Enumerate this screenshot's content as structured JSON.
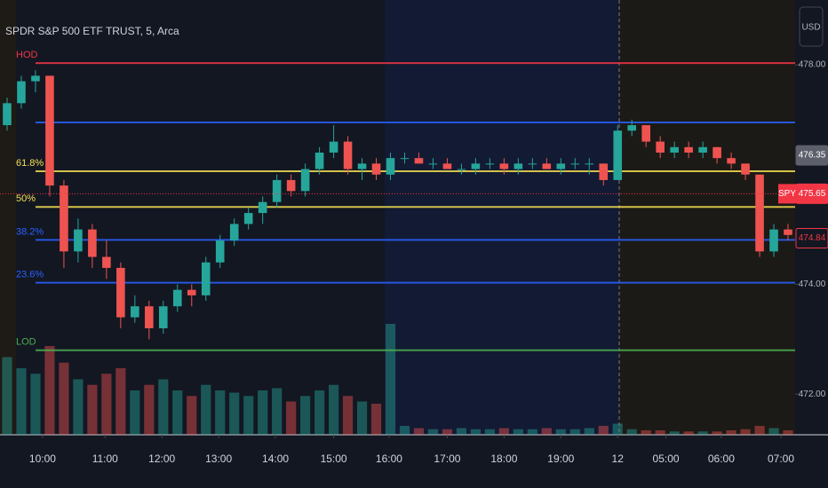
{
  "chart_data": {
    "type": "candlestick",
    "title": "SPDR S&P 500 ETF TRUST, 5, Arca",
    "currency": "USD",
    "up_color": "#26a69a",
    "down_color": "#ef5350",
    "ohlc": [
      [
        476.9,
        477.4,
        476.8,
        477.3
      ],
      [
        477.3,
        477.8,
        477.2,
        477.7
      ],
      [
        477.7,
        477.9,
        477.5,
        477.8
      ],
      [
        477.8,
        477.8,
        475.6,
        475.8
      ],
      [
        475.8,
        475.9,
        474.3,
        474.6
      ],
      [
        474.6,
        475.2,
        474.4,
        475.0
      ],
      [
        475.0,
        475.1,
        474.3,
        474.5
      ],
      [
        474.5,
        474.8,
        474.1,
        474.3
      ],
      [
        474.3,
        474.4,
        473.2,
        473.4
      ],
      [
        473.4,
        473.8,
        473.3,
        473.6
      ],
      [
        473.6,
        473.7,
        473.0,
        473.2
      ],
      [
        473.2,
        473.7,
        473.1,
        473.6
      ],
      [
        473.6,
        474.0,
        473.5,
        473.9
      ],
      [
        473.9,
        474.0,
        473.6,
        473.8
      ],
      [
        473.8,
        474.5,
        473.7,
        474.4
      ],
      [
        474.4,
        474.9,
        474.3,
        474.8
      ],
      [
        474.8,
        475.2,
        474.7,
        475.1
      ],
      [
        475.1,
        475.4,
        475.0,
        475.3
      ],
      [
        475.3,
        475.6,
        475.1,
        475.5
      ],
      [
        475.5,
        476.0,
        475.4,
        475.9
      ],
      [
        475.9,
        476.0,
        475.6,
        475.7
      ],
      [
        475.7,
        476.2,
        475.6,
        476.1
      ],
      [
        476.1,
        476.5,
        476.0,
        476.4
      ],
      [
        476.4,
        476.9,
        476.3,
        476.6
      ],
      [
        476.6,
        476.7,
        476.0,
        476.1
      ],
      [
        476.1,
        476.3,
        475.9,
        476.2
      ],
      [
        476.2,
        476.3,
        475.9,
        476.0
      ],
      [
        476.0,
        476.4,
        475.9,
        476.3
      ],
      [
        476.3,
        476.4,
        476.2,
        476.3
      ],
      [
        476.3,
        476.4,
        476.2,
        476.2
      ],
      [
        476.2,
        476.3,
        476.1,
        476.2
      ],
      [
        476.2,
        476.3,
        476.1,
        476.1
      ],
      [
        476.1,
        476.2,
        476.0,
        476.1
      ],
      [
        476.1,
        476.3,
        476.0,
        476.2
      ],
      [
        476.2,
        476.3,
        476.1,
        476.2
      ],
      [
        476.2,
        476.3,
        476.0,
        476.1
      ],
      [
        476.1,
        476.3,
        476.0,
        476.2
      ],
      [
        476.2,
        476.3,
        476.1,
        476.2
      ],
      [
        476.2,
        476.3,
        476.1,
        476.1
      ],
      [
        476.1,
        476.3,
        476.0,
        476.2
      ],
      [
        476.2,
        476.3,
        476.1,
        476.2
      ],
      [
        476.2,
        476.3,
        476.0,
        476.2
      ],
      [
        476.2,
        476.2,
        475.8,
        475.9
      ],
      [
        475.9,
        476.9,
        475.9,
        476.8
      ],
      [
        476.8,
        477.0,
        476.7,
        476.9
      ],
      [
        476.9,
        476.9,
        476.5,
        476.6
      ],
      [
        476.6,
        476.7,
        476.3,
        476.4
      ],
      [
        476.4,
        476.6,
        476.3,
        476.5
      ],
      [
        476.5,
        476.6,
        476.3,
        476.4
      ],
      [
        476.4,
        476.6,
        476.3,
        476.5
      ],
      [
        476.5,
        476.5,
        476.2,
        476.3
      ],
      [
        476.3,
        476.4,
        476.1,
        476.2
      ],
      [
        476.2,
        476.2,
        475.9,
        476.0
      ],
      [
        476.0,
        476.0,
        474.5,
        474.6
      ],
      [
        474.6,
        475.1,
        474.5,
        475.0
      ],
      [
        475.0,
        475.1,
        474.8,
        474.9
      ]
    ],
    "volume": [
      70,
      60,
      55,
      80,
      65,
      50,
      45,
      55,
      60,
      40,
      45,
      50,
      40,
      35,
      45,
      40,
      38,
      35,
      40,
      42,
      30,
      35,
      40,
      45,
      35,
      30,
      28,
      100,
      8,
      6,
      5,
      5,
      6,
      5,
      5,
      6,
      5,
      5,
      6,
      5,
      5,
      6,
      8,
      10,
      5,
      4,
      4,
      3,
      3,
      3,
      3,
      4,
      5,
      8,
      6,
      4
    ],
    "xlim": [
      -0.5,
      55.5
    ],
    "xticks": [
      {
        "value": 2.5,
        "label": "10:00"
      },
      {
        "value": 6.9,
        "label": "11:00"
      },
      {
        "value": 10.9,
        "label": "12:00"
      },
      {
        "value": 14.9,
        "label": "13:00"
      },
      {
        "value": 18.9,
        "label": "14:00"
      },
      {
        "value": 23,
        "label": "15:00"
      },
      {
        "value": 26.9,
        "label": "16:00"
      },
      {
        "value": 31,
        "label": "17:00"
      },
      {
        "value": 35,
        "label": "18:00"
      },
      {
        "value": 39,
        "label": "19:00"
      },
      {
        "value": 43,
        "label": "12"
      },
      {
        "value": 46.4,
        "label": "05:00"
      },
      {
        "value": 50.3,
        "label": "06:00"
      },
      {
        "value": 54.5,
        "label": "07:00"
      }
    ],
    "ylim": [
      471.26,
      479.18
    ],
    "yticks": [
      {
        "value": 478,
        "label": "478.00"
      },
      {
        "value": 474,
        "label": "474.00"
      },
      {
        "value": 472,
        "label": "472.00"
      }
    ],
    "levels": [
      {
        "value": 478.03,
        "color": "#f23645",
        "label": "HOD"
      },
      {
        "value": 476.95,
        "color": "#2962ff"
      },
      {
        "value": 476.06,
        "color": "#f5e050",
        "label": "61.8%"
      },
      {
        "value": 475.41,
        "color": "#f5e050",
        "label": "50%"
      },
      {
        "value": 474.81,
        "color": "#2962ff",
        "label": "38.2%"
      },
      {
        "value": 474.03,
        "color": "#2962ff",
        "label": "23.6%"
      },
      {
        "value": 472.8,
        "color": "#4caf50",
        "label": "LOD"
      }
    ],
    "price_labels": [
      {
        "value": 476.35,
        "label": "476.35",
        "color": "#5d606b"
      },
      {
        "value": 475.65,
        "label": "475.65",
        "color": "#f23645",
        "symbol": "SPY"
      },
      {
        "value": 474.84,
        "label": "474.84",
        "color": "#f23645"
      }
    ]
  }
}
